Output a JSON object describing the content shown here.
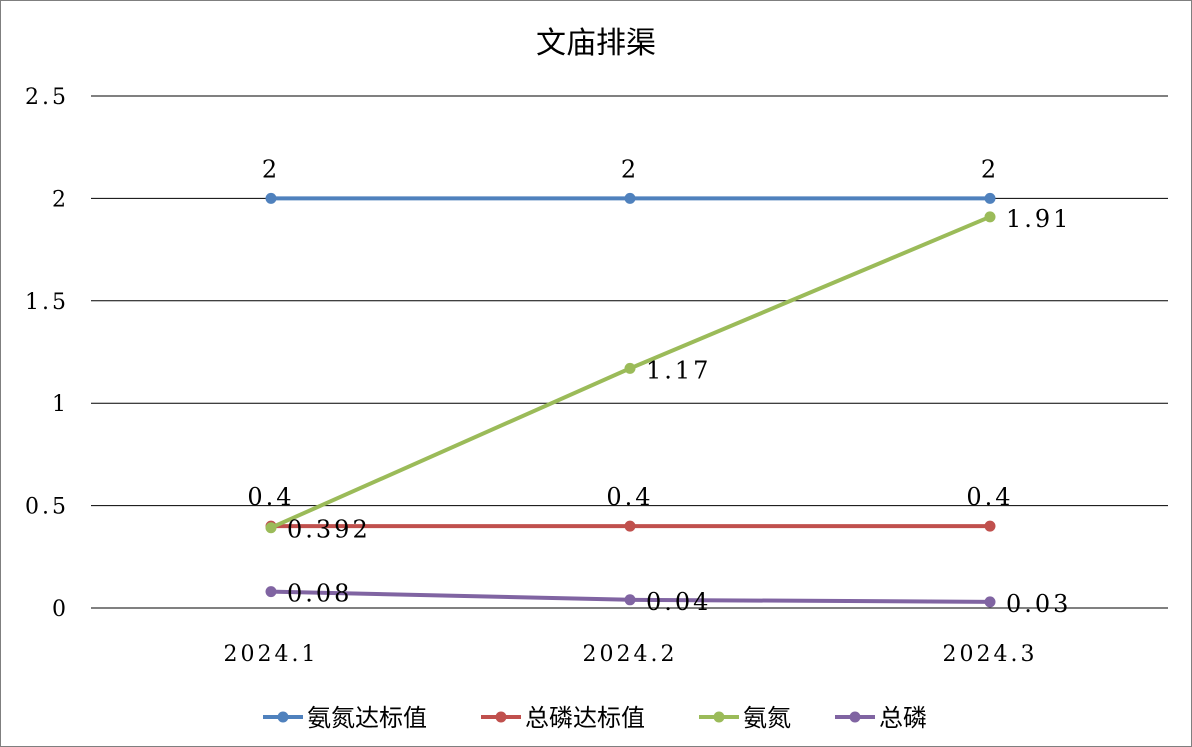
{
  "chart_data": {
    "type": "line",
    "title": "文庙排渠",
    "categories": [
      "2024.1",
      "2024.2",
      "2024.3"
    ],
    "ylim": [
      0,
      2.5
    ],
    "y_ticks": [
      "0",
      "0.5",
      "1",
      "1.5",
      "2",
      "2.5"
    ],
    "grid": true,
    "legend_position": "bottom",
    "series": [
      {
        "name": "氨氮达标值",
        "color": "#4f81bd",
        "values": [
          2,
          2,
          2
        ],
        "labels": [
          "2",
          "2",
          "2"
        ],
        "label_position": "above"
      },
      {
        "name": "总磷达标值",
        "color": "#c0504d",
        "values": [
          0.4,
          0.4,
          0.4
        ],
        "labels": [
          "0.4",
          "0.4",
          "0.4"
        ],
        "label_position": "above"
      },
      {
        "name": "氨氮",
        "color": "#9bbb59",
        "values": [
          0.392,
          1.17,
          1.91
        ],
        "labels": [
          "0.392",
          "1.17",
          "1.91"
        ],
        "label_position": "right"
      },
      {
        "name": "总磷",
        "color": "#8064a2",
        "values": [
          0.08,
          0.04,
          0.03
        ],
        "labels": [
          "0.08",
          "0.04",
          "0.03"
        ],
        "label_position": "right"
      }
    ]
  }
}
